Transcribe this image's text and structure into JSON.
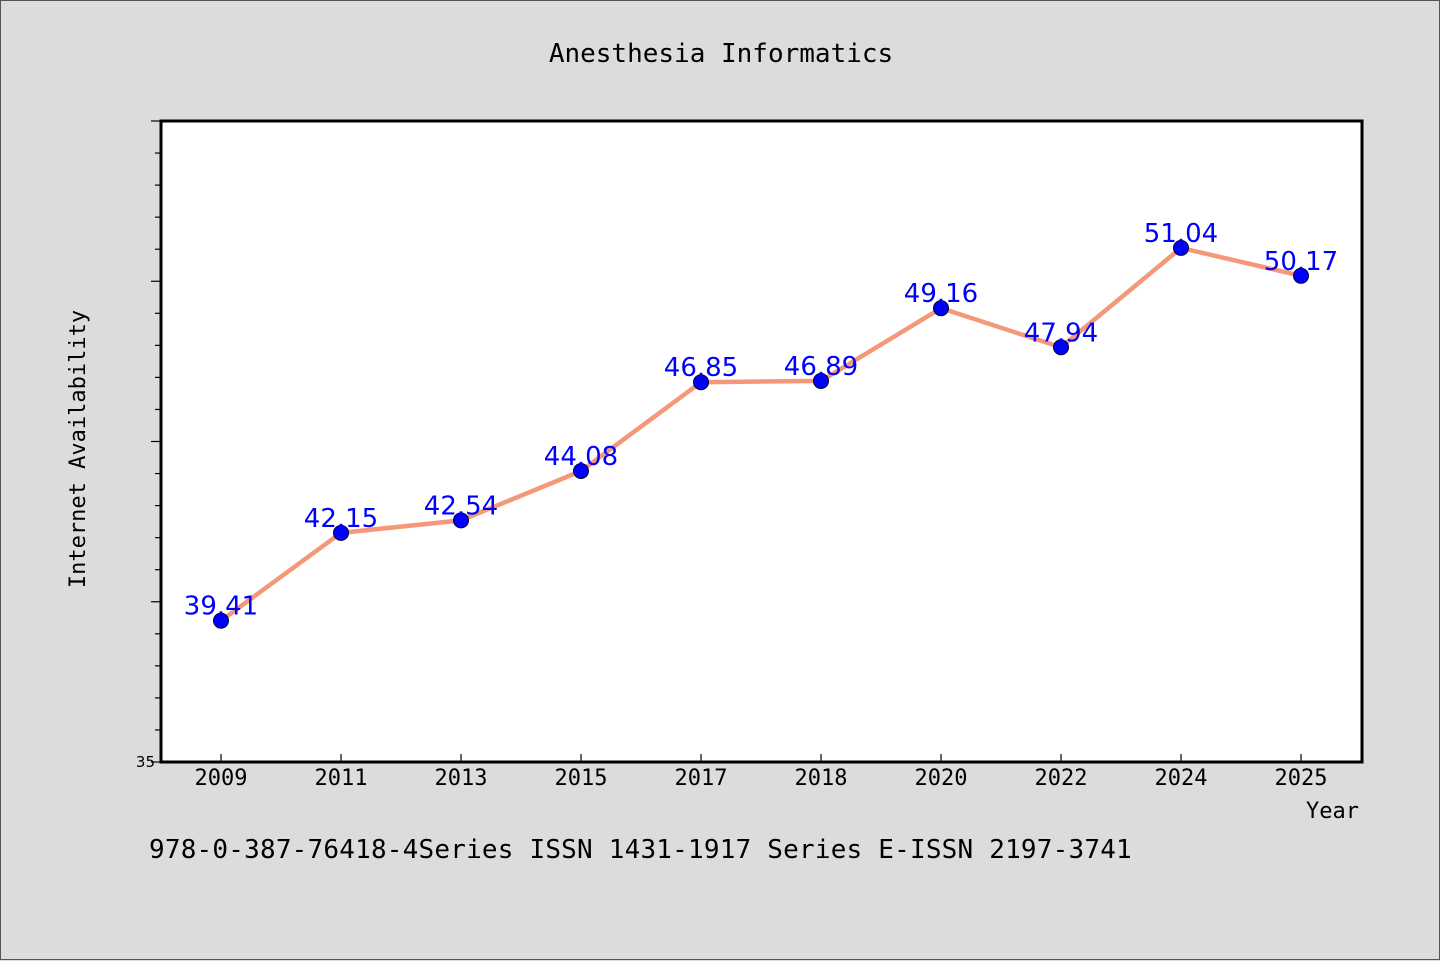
{
  "colors": {
    "background": "#dcdcdc",
    "plot_background": "#ffffff",
    "line": "#f4987a",
    "marker": "#0000ff",
    "data_label": "#0000ff",
    "axis": "#000000"
  },
  "footer_text": "978-0-387-76418-4Series ISSN 1431-1917 Series E-ISSN 2197-3741",
  "chart_data": {
    "type": "line",
    "title": "Anesthesia Informatics",
    "xlabel": "Year",
    "ylabel": "Internet Availability",
    "categories": [
      "2009",
      "2011",
      "2013",
      "2015",
      "2017",
      "2018",
      "2020",
      "2022",
      "2024",
      "2025"
    ],
    "series": [
      {
        "values": [
          39.41,
          42.15,
          42.54,
          44.08,
          46.85,
          46.89,
          49.16,
          47.94,
          51.04,
          50.17
        ]
      }
    ],
    "data_labels": [
      "39.41",
      "42.15",
      "42.54",
      "44.08",
      "46.85",
      "46.89",
      "49.16",
      "47.94",
      "51.04",
      "50.17"
    ],
    "ylim": [
      35,
      55
    ],
    "y_tick_labels": [
      "35"
    ],
    "grid": false,
    "legend": "none"
  }
}
